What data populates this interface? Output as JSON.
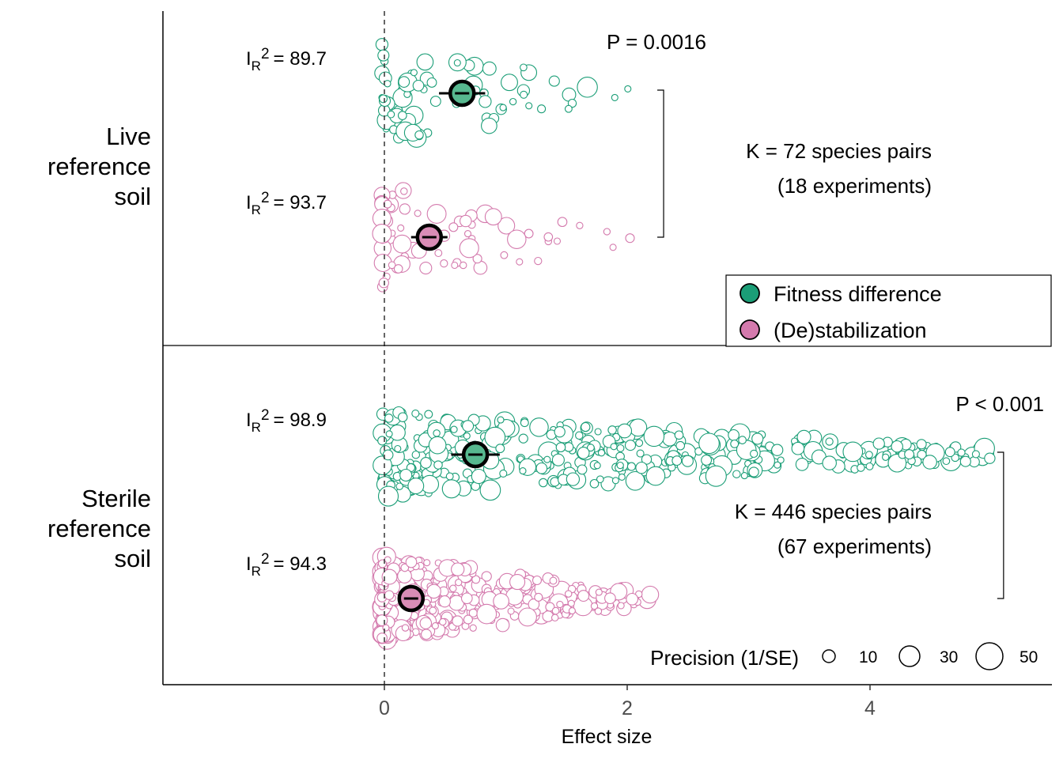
{
  "chart_data": {
    "type": "scatter",
    "xlabel": "Effect size",
    "xlim": [
      -1.8,
      5.3
    ],
    "x_ticks": [
      "0",
      "2",
      "4"
    ],
    "x_tick_values": [
      0,
      2,
      4
    ],
    "reference_line_x": 0,
    "colors": {
      "Fitness difference": "#1b9e77",
      "(De)stabilization": "#d47aad",
      "mean_fill_fitness": "#57b88f",
      "mean_fill_destab": "#d98cb6"
    },
    "legend": {
      "entries": [
        "Fitness difference",
        "(De)stabilization"
      ],
      "placement": "right, between panels"
    },
    "size_legend": {
      "title": "Precision (1/SE)",
      "values": [
        10,
        30,
        50
      ],
      "labels": [
        "10",
        "30",
        "50"
      ]
    },
    "panels": [
      {
        "label_lines": [
          "Live",
          "reference",
          "soil"
        ],
        "p_value": "P = 0.0016",
        "k_text": "K = 72 species pairs",
        "exp_text": "(18 experiments)",
        "bracket_x": 2.3,
        "series": [
          {
            "name": "Fitness difference",
            "i2_value": "= 89.7",
            "mean": 0.64,
            "ci": [
              0.45,
              0.83
            ],
            "n_points": 72,
            "point_max": 2.05,
            "point_shape": 2.2,
            "band_height": 1.0
          },
          {
            "name": "(De)stabilization",
            "i2_value": "= 93.7",
            "mean": 0.37,
            "ci": [
              0.22,
              0.52
            ],
            "n_points": 72,
            "point_max": 2.05,
            "point_shape": 3.2,
            "band_height": 1.0
          }
        ]
      },
      {
        "label_lines": [
          "Sterile",
          "reference",
          "soil"
        ],
        "p_value": "P < 0.001",
        "k_text": "K = 446 species pairs",
        "exp_text": "(67 experiments)",
        "bracket_x": 5.1,
        "series": [
          {
            "name": "Fitness difference",
            "i2_value": "= 98.9",
            "mean": 0.75,
            "ci": [
              0.55,
              0.95
            ],
            "n_points": 446,
            "point_max": 5.0,
            "point_shape": 1.7,
            "band_height": 0.85
          },
          {
            "name": "(De)stabilization",
            "i2_value": "= 94.3",
            "mean": 0.22,
            "ci": [
              0.15,
              0.29
            ],
            "n_points": 446,
            "point_max": 2.2,
            "point_shape": 3.0,
            "band_height": 0.85
          }
        ]
      }
    ],
    "i2_symbol": "I",
    "i2_subscript": "R",
    "i2_superscript": "2"
  }
}
